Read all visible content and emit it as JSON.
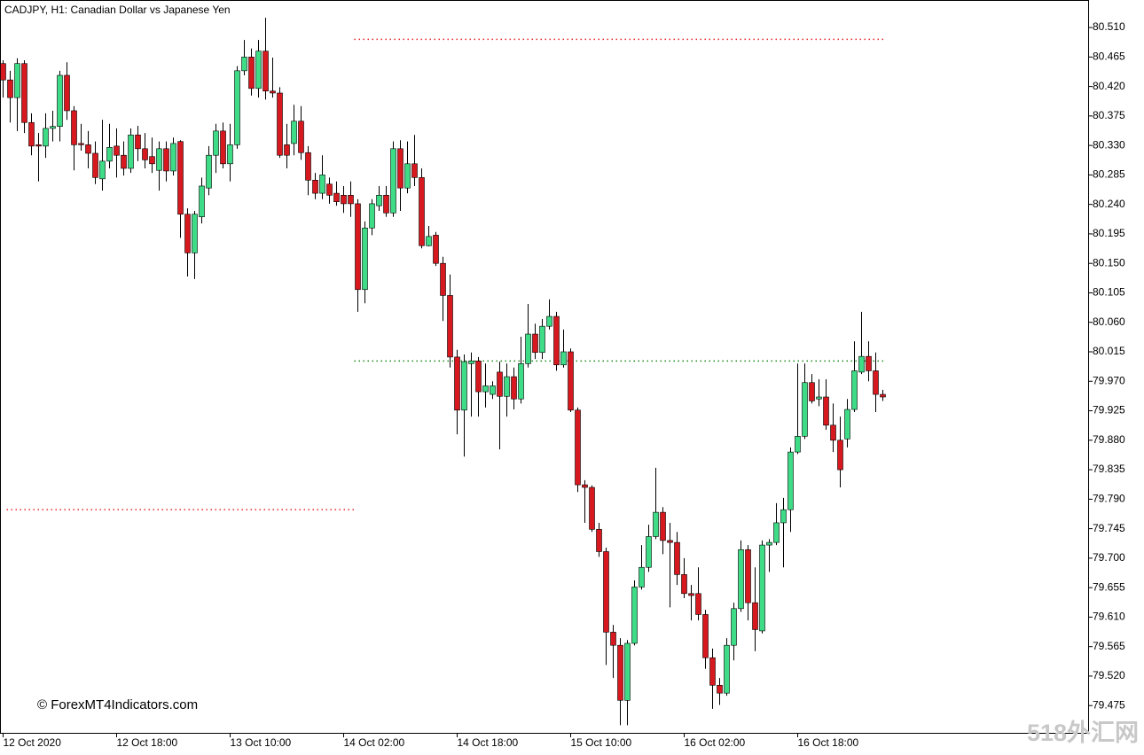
{
  "chart_data": {
    "type": "candlestick",
    "title": "CADJPY, H1:  Canadian Dollar vs Japanese Yen",
    "annotations": [
      "© ForexMT4Indicators.com",
      "518外汇网"
    ],
    "up_color": "#3edc87",
    "down_color": "#d7191f",
    "wick_color": "#000000",
    "categories": [
      "12 Oct 2020",
      null,
      null,
      null,
      null,
      null,
      null,
      null,
      null,
      null,
      null,
      null,
      null,
      null,
      null,
      null,
      "12 Oct 18:00",
      null,
      null,
      null,
      null,
      null,
      null,
      null,
      null,
      null,
      null,
      null,
      null,
      null,
      null,
      null,
      "13 Oct 10:00",
      null,
      null,
      null,
      null,
      null,
      null,
      null,
      null,
      null,
      null,
      null,
      null,
      null,
      null,
      null,
      "14 Oct 02:00",
      null,
      null,
      null,
      null,
      null,
      null,
      null,
      null,
      null,
      null,
      null,
      null,
      null,
      null,
      null,
      "14 Oct 18:00",
      null,
      null,
      null,
      null,
      null,
      null,
      null,
      null,
      null,
      null,
      null,
      null,
      null,
      null,
      null,
      "15 Oct 10:00",
      null,
      null,
      null,
      null,
      null,
      null,
      null,
      null,
      null,
      null,
      null,
      null,
      null,
      null,
      null,
      "16 Oct 02:00",
      null,
      null,
      null,
      null,
      null,
      null,
      null,
      null,
      null,
      null,
      null,
      null,
      null,
      null,
      null,
      "16 Oct 18:00",
      null,
      null,
      null,
      null,
      null,
      null,
      null,
      null,
      null,
      null,
      null,
      null
    ],
    "open": [
      80.455,
      80.43,
      80.403,
      80.455,
      80.365,
      80.331,
      80.329,
      80.356,
      80.359,
      80.437,
      80.383,
      80.333,
      80.331,
      80.318,
      80.279,
      80.306,
      80.329,
      80.315,
      80.295,
      80.346,
      80.325,
      80.313,
      80.292,
      80.325,
      80.291,
      80.336,
      80.225,
      80.166,
      80.221,
      80.265,
      80.315,
      80.352,
      80.302,
      80.331,
      80.444,
      80.465,
      80.417,
      80.474,
      80.413,
      80.41,
      80.331,
      80.333,
      80.367,
      80.319,
      80.277,
      80.257,
      80.271,
      80.257,
      80.254,
      80.254,
      80.241,
      80.11,
      80.204,
      80.238,
      80.254,
      80.227,
      80.325,
      80.265,
      80.302,
      80.281,
      80.177,
      80.193,
      80.15,
      80.101,
      80.007,
      79.926,
      79.997,
      80.001,
      79.954,
      79.95,
      79.984,
      79.947,
      79.977,
      79.943,
      79.997,
      80.042,
      80.014,
      80.054,
      80.069,
      79.995,
      80.015,
      79.926,
      79.812,
      79.808,
      79.744,
      79.71,
      79.587,
      79.567,
      79.483,
      79.57,
      79.656,
      79.686,
      79.733,
      79.77,
      79.727,
      79.724,
      79.675,
      79.646,
      79.646,
      79.614,
      79.548,
      79.506,
      79.494,
      79.567,
      79.623,
      79.713,
      79.632,
      79.589,
      79.72,
      79.724,
      79.754,
      79.774,
      79.862,
      79.886,
      79.968,
      79.943,
      79.946,
      79.903,
      79.88,
      79.882,
      79.927,
      79.984,
      80.008,
      79.986,
      79.95
    ],
    "high": [
      80.46,
      80.444,
      80.463,
      80.46,
      80.379,
      80.349,
      80.379,
      80.383,
      80.444,
      80.457,
      80.39,
      80.363,
      80.352,
      80.336,
      80.369,
      80.363,
      80.356,
      80.336,
      80.356,
      80.36,
      80.349,
      80.342,
      80.336,
      80.336,
      80.342,
      80.338,
      80.234,
      80.23,
      80.281,
      80.329,
      80.363,
      80.365,
      80.363,
      80.451,
      80.491,
      80.478,
      80.491,
      80.525,
      80.464,
      80.419,
      80.363,
      80.392,
      80.39,
      80.329,
      80.288,
      80.315,
      80.281,
      80.275,
      80.268,
      80.275,
      80.248,
      80.214,
      80.248,
      80.268,
      80.268,
      80.336,
      80.338,
      80.336,
      80.346,
      80.295,
      80.207,
      80.198,
      80.16,
      80.133,
      80.018,
      80.011,
      80.014,
      80.007,
      79.997,
      79.97,
      80.0,
      79.997,
      79.991,
      80.038,
      80.088,
      80.058,
      80.065,
      80.095,
      80.076,
      80.049,
      80.02,
      79.93,
      79.819,
      79.811,
      79.754,
      79.716,
      79.598,
      79.578,
      79.575,
      79.666,
      79.72,
      79.751,
      79.838,
      79.778,
      79.754,
      79.74,
      79.7,
      79.659,
      79.686,
      79.621,
      79.562,
      79.517,
      79.578,
      79.632,
      79.727,
      79.72,
      79.686,
      79.727,
      79.729,
      79.784,
      79.792,
      79.869,
      79.997,
      79.997,
      79.981,
      79.973,
      79.973,
      79.936,
      79.916,
      79.943,
      80.031,
      80.076,
      80.031,
      80.014,
      79.957
    ],
    "low": [
      80.403,
      80.365,
      80.352,
      80.349,
      80.315,
      80.275,
      80.311,
      80.336,
      80.336,
      80.369,
      80.292,
      80.322,
      80.295,
      80.271,
      80.261,
      80.295,
      80.281,
      80.284,
      80.288,
      80.306,
      80.295,
      80.288,
      80.261,
      80.275,
      80.284,
      80.189,
      80.13,
      80.126,
      80.211,
      80.254,
      80.288,
      80.295,
      80.275,
      80.325,
      80.437,
      80.406,
      80.403,
      80.4,
      80.403,
      80.311,
      80.295,
      80.315,
      80.308,
      80.254,
      80.248,
      80.248,
      80.241,
      80.238,
      80.227,
      80.221,
      80.076,
      80.089,
      80.193,
      80.23,
      80.221,
      80.221,
      80.23,
      80.257,
      80.268,
      80.173,
      80.176,
      80.146,
      80.062,
      79.991,
      79.889,
      79.855,
      79.916,
      79.916,
      79.93,
      79.943,
      79.866,
      79.916,
      79.927,
      79.936,
      79.991,
      80.004,
      80.004,
      80.049,
      79.986,
      79.991,
      79.923,
      79.801,
      79.754,
      79.74,
      79.702,
      79.537,
      79.517,
      79.445,
      79.445,
      79.567,
      79.652,
      79.679,
      79.729,
      79.706,
      79.625,
      79.659,
      79.639,
      79.605,
      79.605,
      79.531,
      79.47,
      79.476,
      79.49,
      79.544,
      79.618,
      79.605,
      79.558,
      79.585,
      79.679,
      79.72,
      79.686,
      79.74,
      79.859,
      79.882,
      79.936,
      79.932,
      79.896,
      79.862,
      79.808,
      79.869,
      79.923,
      79.981,
      79.97,
      79.923,
      79.94
    ],
    "close": [
      80.43,
      80.403,
      80.455,
      80.365,
      80.329,
      80.329,
      80.356,
      80.359,
      80.437,
      80.383,
      80.331,
      80.331,
      80.318,
      80.281,
      80.306,
      80.327,
      80.315,
      80.295,
      80.346,
      80.325,
      80.308,
      80.302,
      80.325,
      80.291,
      80.333,
      80.225,
      80.166,
      80.225,
      80.268,
      80.315,
      80.352,
      80.302,
      80.331,
      80.444,
      80.465,
      80.417,
      80.474,
      80.413,
      80.41,
      80.315,
      80.315,
      80.367,
      80.319,
      80.277,
      80.257,
      80.285,
      80.254,
      80.244,
      80.241,
      80.241,
      80.11,
      80.204,
      80.241,
      80.254,
      80.227,
      80.325,
      80.265,
      80.302,
      80.281,
      80.177,
      80.191,
      80.15,
      80.101,
      80.007,
      79.926,
      80.0,
      80.001,
      79.954,
      79.963,
      79.963,
      79.947,
      79.977,
      79.943,
      79.997,
      80.042,
      80.014,
      80.054,
      80.069,
      79.995,
      80.015,
      79.926,
      79.812,
      79.808,
      79.744,
      79.71,
      79.587,
      79.567,
      79.483,
      79.57,
      79.656,
      79.686,
      79.733,
      79.77,
      79.727,
      79.724,
      79.675,
      79.646,
      79.643,
      79.614,
      79.548,
      79.506,
      79.494,
      79.567,
      79.623,
      79.713,
      79.632,
      79.591,
      79.72,
      79.724,
      79.754,
      79.774,
      79.862,
      79.886,
      79.968,
      79.94,
      79.946,
      79.903,
      79.88,
      79.835,
      79.927,
      79.986,
      80.008,
      79.986,
      79.95,
      79.946
    ],
    "levels": [
      {
        "value": 80.492,
        "color": "#e8262b",
        "from": 50,
        "to": 124
      },
      {
        "value": 80.001,
        "color": "#1a8a1a",
        "from": 50,
        "to": 124
      },
      {
        "value": 79.774,
        "color": "#e8262b",
        "from": 1,
        "to": 49
      }
    ],
    "ylim": [
      79.432,
      80.552
    ],
    "yticks": [
      {
        "value": 80.51,
        "label": "80.510"
      },
      {
        "value": 80.465,
        "label": "80.465"
      },
      {
        "value": 80.42,
        "label": "80.420"
      },
      {
        "value": 80.375,
        "label": "80.375"
      },
      {
        "value": 80.33,
        "label": "80.330"
      },
      {
        "value": 80.285,
        "label": "80.285"
      },
      {
        "value": 80.24,
        "label": "80.240"
      },
      {
        "value": 80.195,
        "label": "80.195"
      },
      {
        "value": 80.15,
        "label": "80.150"
      },
      {
        "value": 80.105,
        "label": "80.105"
      },
      {
        "value": 80.06,
        "label": "80.060"
      },
      {
        "value": 80.015,
        "label": "80.015"
      },
      {
        "value": 79.97,
        "label": "79.970"
      },
      {
        "value": 79.925,
        "label": "79.925"
      },
      {
        "value": 79.88,
        "label": "79.880"
      },
      {
        "value": 79.835,
        "label": "79.835"
      },
      {
        "value": 79.79,
        "label": "79.790"
      },
      {
        "value": 79.745,
        "label": "79.745"
      },
      {
        "value": 79.7,
        "label": "79.700"
      },
      {
        "value": 79.655,
        "label": "79.655"
      },
      {
        "value": 79.61,
        "label": "79.610"
      },
      {
        "value": 79.565,
        "label": "79.565"
      },
      {
        "value": 79.52,
        "label": "79.520"
      },
      {
        "value": 79.475,
        "label": "79.475"
      }
    ]
  }
}
